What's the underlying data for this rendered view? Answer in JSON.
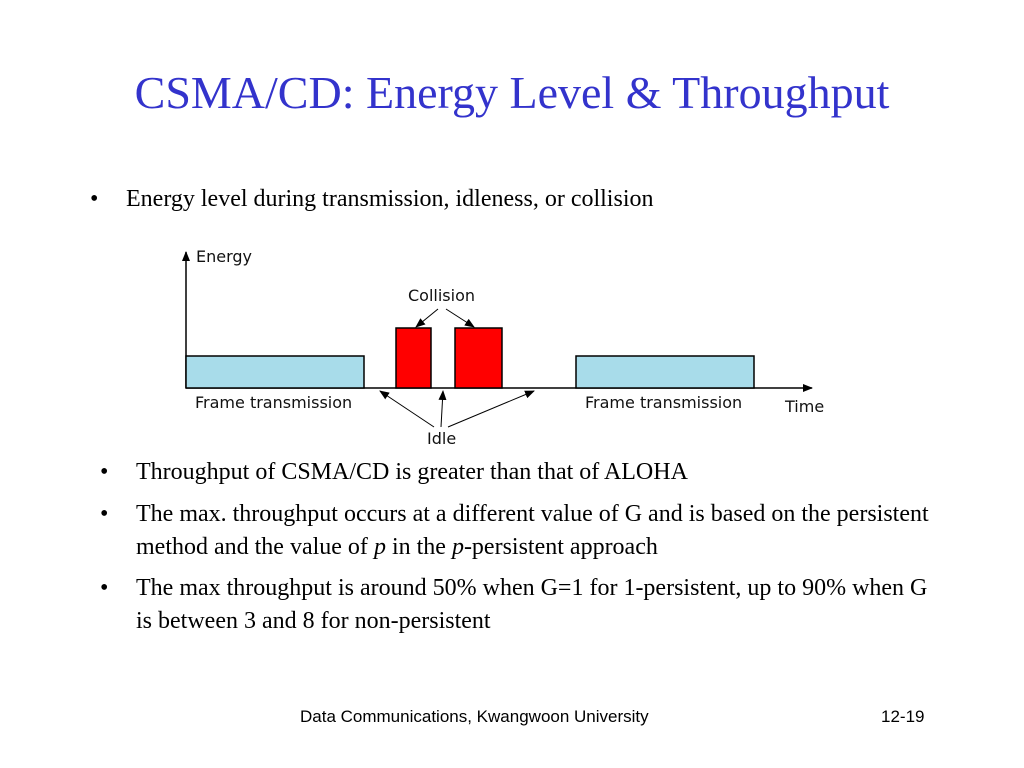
{
  "slide": {
    "title": "CSMA/CD: Energy Level & Throughput",
    "bullet_char": "•",
    "intro_bullet": "Energy level during transmission, idleness, or collision",
    "bullets": [
      {
        "segments": [
          "Throughput of CSMA/CD is greater than that of ALOHA"
        ]
      },
      {
        "segments": [
          "The max. throughput occurs at a different value of G and is based on the persistent method and the value of ",
          "p",
          " in the ",
          "p",
          "-persistent approach"
        ]
      },
      {
        "segments": [
          "The max throughput is around 50% when G=1 for 1-persistent, up to 90% when G is between 3 and 8 for non-persistent"
        ]
      }
    ]
  },
  "diagram": {
    "y_axis_label": "Energy",
    "x_axis_label": "Time",
    "collision_label": "Collision",
    "idle_label": "Idle",
    "frame_label_left": "Frame transmission",
    "frame_label_right": "Frame transmission",
    "colors": {
      "frame": "#a8dcea",
      "collision": "#ff0000",
      "stroke": "#000000"
    }
  },
  "footer": {
    "left": "Data Communications, Kwangwoon University",
    "right": "12-19"
  }
}
